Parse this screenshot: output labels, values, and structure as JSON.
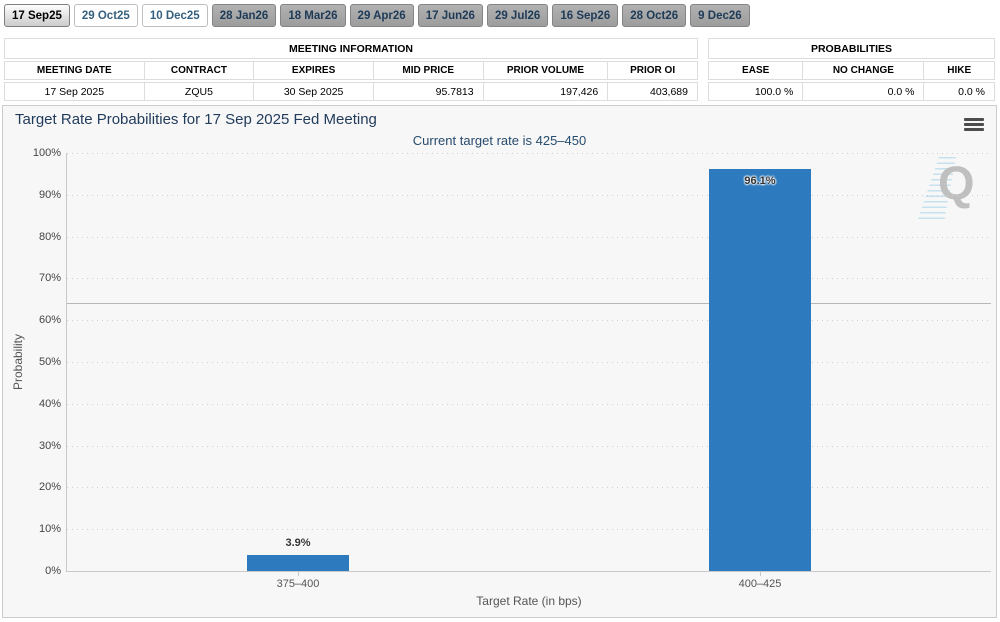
{
  "tabs": [
    {
      "label": "17 Sep25",
      "state": "selected"
    },
    {
      "label": "29 Oct25",
      "state": "light"
    },
    {
      "label": "10 Dec25",
      "state": "light"
    },
    {
      "label": "28 Jan26",
      "state": "dark"
    },
    {
      "label": "18 Mar26",
      "state": "dark"
    },
    {
      "label": "29 Apr26",
      "state": "dark"
    },
    {
      "label": "17 Jun26",
      "state": "dark"
    },
    {
      "label": "29 Jul26",
      "state": "dark"
    },
    {
      "label": "16 Sep26",
      "state": "dark"
    },
    {
      "label": "28 Oct26",
      "state": "dark"
    },
    {
      "label": "9 Dec26",
      "state": "dark"
    }
  ],
  "meeting_info": {
    "title": "MEETING INFORMATION",
    "columns": [
      "MEETING DATE",
      "CONTRACT",
      "EXPIRES",
      "MID PRICE",
      "PRIOR VOLUME",
      "PRIOR OI"
    ],
    "widths": [
      140,
      110,
      120,
      110,
      125,
      89
    ],
    "values": [
      "17 Sep 2025",
      "ZQU5",
      "30 Sep 2025",
      "95.7813",
      "197,426",
      "403,689"
    ],
    "value_aligns": [
      "center",
      "center",
      "center",
      "right",
      "right",
      "right"
    ]
  },
  "probabilities": {
    "title": "PROBABILITIES",
    "columns": [
      "EASE",
      "NO CHANGE",
      "HIKE"
    ],
    "widths": [
      95,
      122,
      70
    ],
    "values": [
      "100.0 %",
      "0.0 %",
      "0.0 %"
    ],
    "value_aligns": [
      "right",
      "right",
      "right"
    ]
  },
  "chart": {
    "menu_icon": "hamburger-icon",
    "watermark_letter": "Q"
  },
  "chart_data": {
    "type": "bar",
    "title": "Target Rate Probabilities for 17 Sep 2025 Fed Meeting",
    "subtitle": "Current target rate is 425–450",
    "categories": [
      "375–400",
      "400–425"
    ],
    "values": [
      3.9,
      96.1
    ],
    "bar_labels": [
      "3.9%",
      "96.1%"
    ],
    "xlabel": "Target Rate (in bps)",
    "ylabel": "Probability",
    "ylim": [
      0,
      100
    ],
    "ytick_step": 10,
    "ytick_suffix": "%",
    "plotline_y": 64,
    "bar_color": "#2d7bbe",
    "grid": "dotted",
    "legend": "none"
  }
}
